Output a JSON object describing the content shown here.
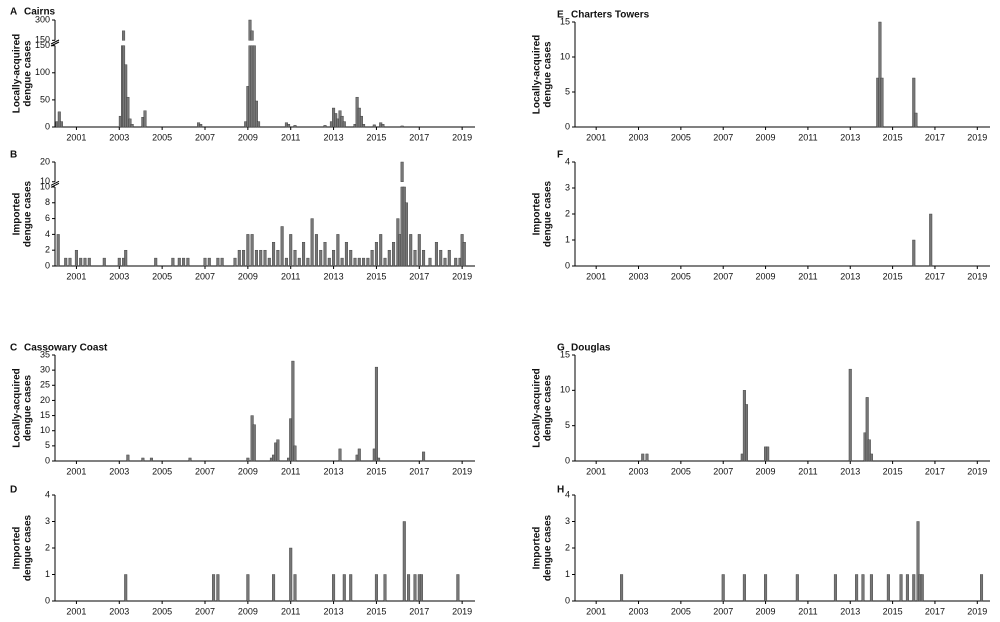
{
  "chart_data": [
    {
      "type": "bar",
      "panel": "A",
      "title": "Cairns",
      "ylabel": [
        "Locally-acquired",
        "dengue cases"
      ],
      "color": "#777777",
      "x": [
        2000.1,
        2000.2,
        2000.3,
        2003.05,
        2003.15,
        2003.2,
        2003.3,
        2003.4,
        2003.5,
        2003.6,
        2004.1,
        2004.2,
        2006.7,
        2006.8,
        2008.9,
        2009.0,
        2009.1,
        2009.2,
        2009.3,
        2009.4,
        2009.5,
        2010.8,
        2010.9,
        2011.2,
        2012.6,
        2012.9,
        2013.0,
        2013.1,
        2013.2,
        2013.3,
        2013.4,
        2013.5,
        2014.0,
        2014.1,
        2014.2,
        2014.3,
        2014.4,
        2014.9,
        2015.2,
        2015.3,
        2016.2
      ],
      "values": [
        10,
        28,
        10,
        20,
        150,
        220,
        115,
        55,
        15,
        5,
        18,
        30,
        8,
        5,
        10,
        75,
        300,
        220,
        150,
        48,
        10,
        8,
        5,
        3,
        3,
        10,
        35,
        25,
        15,
        30,
        20,
        10,
        5,
        55,
        35,
        20,
        5,
        4,
        8,
        5,
        2
      ],
      "xlim": [
        2000,
        2019.6
      ],
      "xticks": [
        2001,
        2003,
        2005,
        2007,
        2009,
        2011,
        2013,
        2015,
        2017,
        2019
      ],
      "ylim": [
        [
          0,
          150
        ],
        [
          150,
          300
        ]
      ],
      "yticks": [
        [
          0,
          50,
          100,
          150
        ],
        [
          150,
          300
        ]
      ]
    },
    {
      "type": "bar",
      "panel": "B",
      "ylabel": [
        "Imported",
        "dengue cases"
      ],
      "color": "#777777",
      "x": [
        2000.15,
        2000.5,
        2000.7,
        2001.0,
        2001.2,
        2001.4,
        2001.6,
        2002.3,
        2003.0,
        2003.2,
        2003.3,
        2004.7,
        2005.5,
        2005.8,
        2006.0,
        2006.2,
        2007.0,
        2007.2,
        2007.6,
        2007.8,
        2008.4,
        2008.6,
        2008.8,
        2009.0,
        2009.2,
        2009.4,
        2009.6,
        2009.8,
        2010.0,
        2010.2,
        2010.4,
        2010.6,
        2010.8,
        2011.0,
        2011.2,
        2011.4,
        2011.6,
        2011.8,
        2012.0,
        2012.2,
        2012.4,
        2012.6,
        2012.8,
        2013.0,
        2013.2,
        2013.4,
        2013.6,
        2013.8,
        2014.0,
        2014.2,
        2014.4,
        2014.6,
        2014.8,
        2015.0,
        2015.2,
        2015.4,
        2015.6,
        2015.8,
        2016.0,
        2016.1,
        2016.2,
        2016.3,
        2016.4,
        2016.6,
        2016.8,
        2017.0,
        2017.2,
        2017.5,
        2017.8,
        2018.0,
        2018.2,
        2018.4,
        2018.7,
        2018.9,
        2019.0,
        2019.1
      ],
      "values": [
        4,
        1,
        1,
        2,
        1,
        1,
        1,
        1,
        1,
        1,
        2,
        1,
        1,
        1,
        1,
        1,
        1,
        1,
        1,
        1,
        1,
        2,
        2,
        4,
        4,
        2,
        2,
        2,
        1,
        3,
        2,
        5,
        1,
        4,
        2,
        1,
        3,
        1,
        6,
        4,
        2,
        3,
        1,
        2,
        4,
        1,
        3,
        2,
        1,
        1,
        1,
        1,
        2,
        3,
        4,
        1,
        2,
        3,
        6,
        4,
        20,
        10,
        8,
        4,
        2,
        4,
        2,
        1,
        3,
        2,
        1,
        2,
        1,
        1,
        4,
        3
      ],
      "xlim": [
        2000,
        2019.6
      ],
      "xticks": [
        2001,
        2003,
        2005,
        2007,
        2009,
        2011,
        2013,
        2015,
        2017,
        2019
      ],
      "ylim": [
        [
          0,
          10
        ],
        [
          10,
          20
        ]
      ],
      "yticks": [
        [
          0,
          2,
          4,
          6,
          8,
          10
        ],
        [
          10,
          20
        ]
      ]
    },
    {
      "type": "bar",
      "panel": "C",
      "title": "Cassowary Coast",
      "ylabel": [
        "Locally-acquired",
        "dengue cases"
      ],
      "color": "#777777",
      "x": [
        2003.4,
        2004.1,
        2004.5,
        2006.3,
        2009.0,
        2009.2,
        2009.3,
        2010.1,
        2010.2,
        2010.3,
        2010.4,
        2010.9,
        2011.0,
        2011.1,
        2011.2,
        2013.3,
        2014.1,
        2014.2,
        2014.9,
        2015.0,
        2015.1,
        2017.2
      ],
      "values": [
        2,
        1,
        1,
        1,
        1,
        15,
        12,
        1,
        2,
        6,
        7,
        1,
        14,
        33,
        5,
        4,
        2,
        4,
        4,
        31,
        1,
        3
      ],
      "xlim": [
        2000,
        2019.6
      ],
      "xticks": [
        2001,
        2003,
        2005,
        2007,
        2009,
        2011,
        2013,
        2015,
        2017,
        2019
      ],
      "ylim": [
        0,
        35
      ],
      "yticks": [
        0,
        5,
        10,
        15,
        20,
        25,
        30,
        35
      ]
    },
    {
      "type": "bar",
      "panel": "D",
      "ylabel": [
        "Imported",
        "dengue cases"
      ],
      "color": "#777777",
      "x": [
        2003.3,
        2007.4,
        2007.6,
        2009.0,
        2010.2,
        2011.0,
        2011.2,
        2013.0,
        2013.5,
        2013.8,
        2015.0,
        2015.4,
        2016.3,
        2016.5,
        2016.8,
        2017.0,
        2017.1,
        2018.8
      ],
      "values": [
        1,
        1,
        1,
        1,
        1,
        2,
        1,
        1,
        1,
        1,
        1,
        1,
        3,
        1,
        1,
        1,
        1,
        1
      ],
      "xlim": [
        2000,
        2019.6
      ],
      "xticks": [
        2001,
        2003,
        2005,
        2007,
        2009,
        2011,
        2013,
        2015,
        2017,
        2019
      ],
      "ylim": [
        0,
        4
      ],
      "yticks": [
        0,
        1,
        2,
        3,
        4
      ]
    },
    {
      "type": "bar",
      "panel": "E",
      "title": "Charters Towers",
      "ylabel": [
        "Locally-acquired",
        "dengue cases"
      ],
      "color": "#777777",
      "x": [
        2014.3,
        2014.4,
        2014.5,
        2016.0,
        2016.1
      ],
      "values": [
        7,
        15,
        7,
        7,
        2
      ],
      "xlim": [
        2000,
        2019.6
      ],
      "xticks": [
        2001,
        2003,
        2005,
        2007,
        2009,
        2011,
        2013,
        2015,
        2017,
        2019
      ],
      "ylim": [
        0,
        15
      ],
      "yticks": [
        0,
        5,
        10,
        15
      ]
    },
    {
      "type": "bar",
      "panel": "F",
      "ylabel": [
        "Imported",
        "dengue cases"
      ],
      "color": "#777777",
      "x": [
        2016.0,
        2016.8
      ],
      "values": [
        1,
        2
      ],
      "xlim": [
        2000,
        2019.6
      ],
      "xticks": [
        2001,
        2003,
        2005,
        2007,
        2009,
        2011,
        2013,
        2015,
        2017,
        2019
      ],
      "ylim": [
        0,
        4
      ],
      "yticks": [
        0,
        1,
        2,
        3,
        4
      ]
    },
    {
      "type": "bar",
      "panel": "G",
      "title": "Douglas",
      "ylabel": [
        "Locally-acquired",
        "dengue cases"
      ],
      "color": "#777777",
      "x": [
        2003.2,
        2003.4,
        2007.9,
        2008.0,
        2008.1,
        2009.0,
        2009.1,
        2013.0,
        2013.7,
        2013.8,
        2013.9,
        2014.0
      ],
      "values": [
        1,
        1,
        1,
        10,
        8,
        2,
        2,
        13,
        4,
        9,
        3,
        1
      ],
      "xlim": [
        2000,
        2019.6
      ],
      "xticks": [
        2001,
        2003,
        2005,
        2007,
        2009,
        2011,
        2013,
        2015,
        2017,
        2019
      ],
      "ylim": [
        0,
        15
      ],
      "yticks": [
        0,
        5,
        10,
        15
      ]
    },
    {
      "type": "bar",
      "panel": "H",
      "ylabel": [
        "Imported",
        "dengue cases"
      ],
      "color": "#777777",
      "x": [
        2002.2,
        2007.0,
        2008.0,
        2009.0,
        2010.5,
        2012.3,
        2013.3,
        2013.6,
        2014.0,
        2014.8,
        2015.4,
        2015.7,
        2016.0,
        2016.2,
        2016.3,
        2016.4,
        2019.2
      ],
      "values": [
        1,
        1,
        1,
        1,
        1,
        1,
        1,
        1,
        1,
        1,
        1,
        1,
        1,
        3,
        1,
        1,
        1
      ],
      "xlim": [
        2000,
        2019.6
      ],
      "xticks": [
        2001,
        2003,
        2005,
        2007,
        2009,
        2011,
        2013,
        2015,
        2017,
        2019
      ],
      "ylim": [
        0,
        4
      ],
      "yticks": [
        0,
        1,
        2,
        3,
        4
      ]
    }
  ]
}
